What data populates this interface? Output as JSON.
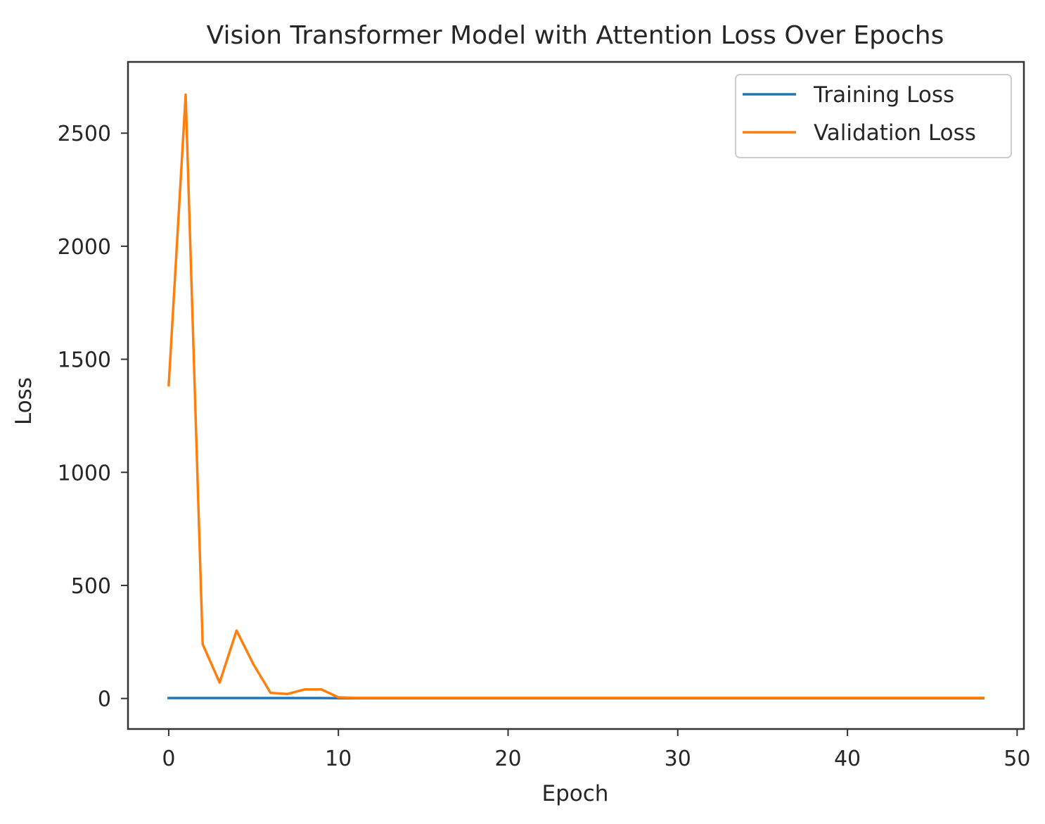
{
  "chart_data": {
    "type": "line",
    "title": "Vision Transformer Model with Attention Loss Over Epochs",
    "xlabel": "Epoch",
    "ylabel": "Loss",
    "xlim": [
      -2.4,
      50.4
    ],
    "ylim": [
      -135,
      2815
    ],
    "xticks": [
      0,
      10,
      20,
      30,
      40,
      50
    ],
    "yticks": [
      0,
      500,
      1000,
      1500,
      2000,
      2500
    ],
    "grid": false,
    "legend": "top-right",
    "series": [
      {
        "name": "Training Loss",
        "color": "#1f77b4",
        "x": [
          0,
          1,
          2,
          3,
          4,
          5,
          6,
          7,
          8,
          9,
          10,
          11,
          12,
          13,
          14,
          15,
          16,
          17,
          18,
          19,
          20,
          21,
          22,
          23,
          24,
          25,
          26,
          27,
          28,
          29,
          30,
          31,
          32,
          33,
          34,
          35,
          36,
          37,
          38,
          39,
          40,
          41,
          42,
          43,
          44,
          45,
          46,
          47,
          48
        ],
        "y": [
          2,
          2,
          2,
          2,
          2,
          2,
          2,
          2,
          2,
          2,
          1,
          1,
          1,
          1,
          1,
          1,
          1,
          1,
          1,
          1,
          1,
          1,
          1,
          1,
          1,
          1,
          1,
          1,
          1,
          1,
          1,
          1,
          1,
          1,
          1,
          1,
          1,
          1,
          1,
          1,
          1,
          1,
          1,
          1,
          1,
          1,
          1,
          1,
          1
        ]
      },
      {
        "name": "Validation Loss",
        "color": "#ff7f0e",
        "x": [
          0,
          1,
          2,
          3,
          4,
          5,
          6,
          7,
          8,
          9,
          10,
          11,
          12,
          13,
          14,
          15,
          16,
          17,
          18,
          19,
          20,
          21,
          22,
          23,
          24,
          25,
          26,
          27,
          28,
          29,
          30,
          31,
          32,
          33,
          34,
          35,
          36,
          37,
          38,
          39,
          40,
          41,
          42,
          43,
          44,
          45,
          46,
          47,
          48
        ],
        "y": [
          1385,
          2670,
          240,
          70,
          300,
          150,
          25,
          20,
          40,
          40,
          5,
          3,
          3,
          3,
          3,
          3,
          3,
          3,
          3,
          3,
          3,
          3,
          3,
          3,
          3,
          3,
          3,
          3,
          3,
          3,
          3,
          3,
          3,
          3,
          3,
          3,
          3,
          3,
          3,
          3,
          3,
          3,
          3,
          3,
          3,
          3,
          3,
          3,
          3
        ]
      }
    ]
  }
}
